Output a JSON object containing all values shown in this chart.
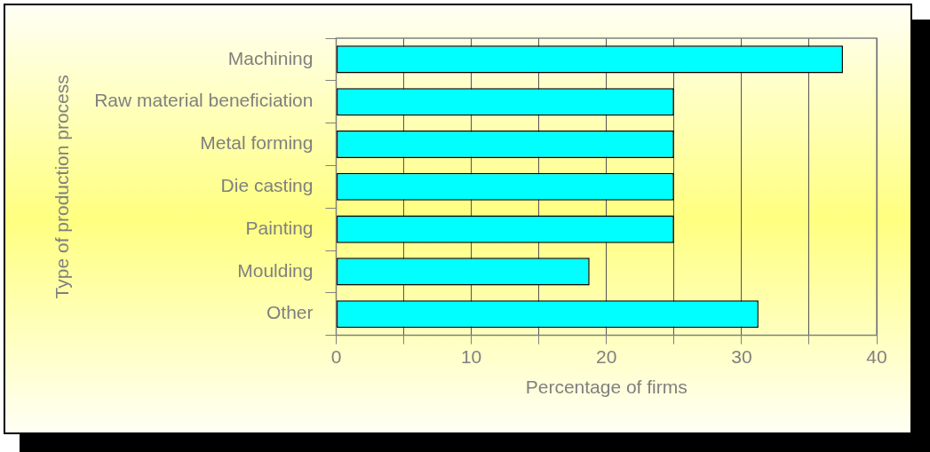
{
  "chart_data": {
    "type": "bar",
    "orientation": "horizontal",
    "xlabel": "Percentage of firms",
    "ylabel": "Type of production process",
    "categories": [
      "Machining",
      "Raw material beneficiation",
      "Metal forming",
      "Die casting",
      "Painting",
      "Moulding",
      "Other"
    ],
    "values": [
      37.5,
      25,
      25,
      25,
      25,
      18.75,
      31.25
    ],
    "color": "#00ffff",
    "xlim": [
      0,
      40
    ],
    "xticks": [
      0,
      {
        "value": 5,
        "label": null
      },
      10,
      {
        "value": 15,
        "label": null
      },
      20,
      {
        "value": 25,
        "label": null
      },
      30,
      {
        "value": 35,
        "label": null
      },
      40
    ],
    "grid": "x",
    "legend": false
  }
}
